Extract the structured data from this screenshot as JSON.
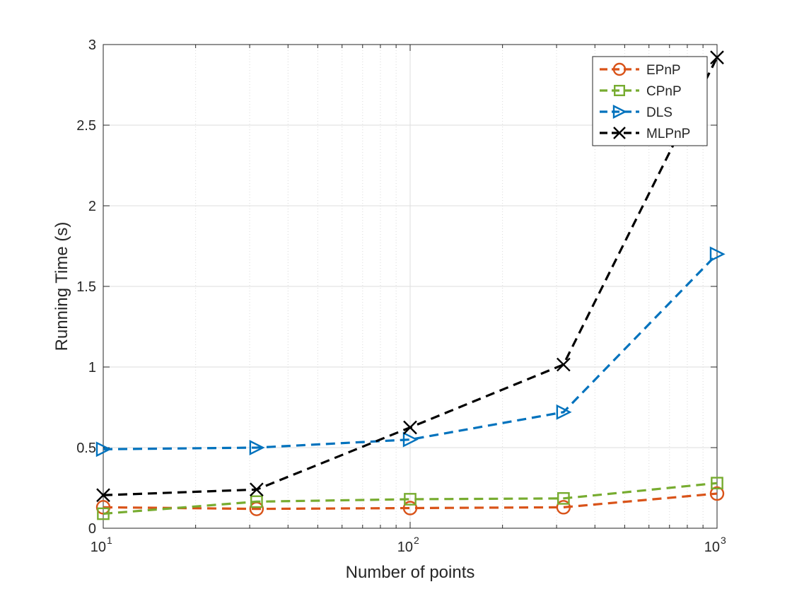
{
  "chart_data": {
    "type": "line",
    "xscale": "log",
    "xlim": [
      10,
      1000
    ],
    "ylim": [
      0,
      3
    ],
    "grid": true,
    "minor_grid_x": true,
    "legend_position": "top-right",
    "xlabel": "Number of points",
    "ylabel": "Running Time (s)",
    "x_ticks": [
      {
        "value": 10,
        "base": "10",
        "exp": "1"
      },
      {
        "value": 100,
        "base": "10",
        "exp": "2"
      },
      {
        "value": 1000,
        "base": "10",
        "exp": "3"
      }
    ],
    "y_ticks": [
      {
        "value": 0,
        "label": "0"
      },
      {
        "value": 0.5,
        "label": "0.5"
      },
      {
        "value": 1,
        "label": "1"
      },
      {
        "value": 1.5,
        "label": "1.5"
      },
      {
        "value": 2,
        "label": "2"
      },
      {
        "value": 2.5,
        "label": "2.5"
      },
      {
        "value": 3,
        "label": "3"
      }
    ],
    "x": [
      10,
      31.6,
      100,
      316,
      1000
    ],
    "series": [
      {
        "name": "EPnP",
        "color": "#d95319",
        "marker": "circle",
        "values": [
          0.13,
          0.12,
          0.125,
          0.13,
          0.215
        ]
      },
      {
        "name": "CPnP",
        "color": "#77ac30",
        "marker": "square",
        "values": [
          0.09,
          0.165,
          0.18,
          0.185,
          0.28
        ]
      },
      {
        "name": "DLS",
        "color": "#0072bd",
        "marker": "triangle-right",
        "values": [
          0.49,
          0.5,
          0.55,
          0.72,
          1.7
        ]
      },
      {
        "name": "MLPnP",
        "color": "#000000",
        "marker": "x",
        "values": [
          0.205,
          0.24,
          0.625,
          1.015,
          2.92
        ]
      }
    ]
  }
}
